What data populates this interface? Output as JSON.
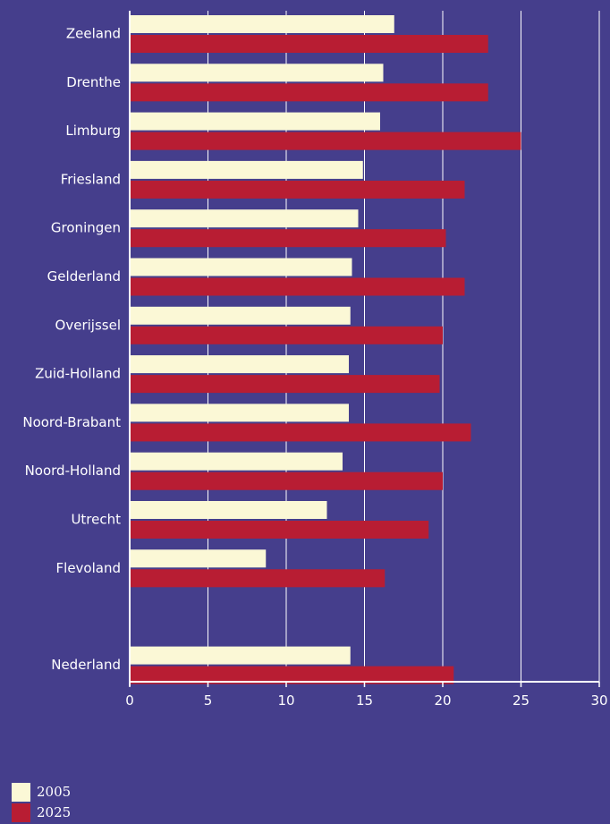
{
  "chart_data": {
    "type": "bar",
    "orientation": "horizontal",
    "categories": [
      "Zeeland",
      "Drenthe",
      "Limburg",
      "Friesland",
      "Groningen",
      "Gelderland",
      "Overijssel",
      "Zuid-Holland",
      "Noord-Brabant",
      "Noord-Holland",
      "Utrecht",
      "Flevoland",
      "Nederland"
    ],
    "series": [
      {
        "name": "2005",
        "color": "#fbf8d6",
        "values": [
          16.9,
          16.2,
          16.0,
          14.9,
          14.6,
          14.2,
          14.1,
          14.0,
          14.0,
          13.6,
          12.6,
          8.7,
          14.1
        ]
      },
      {
        "name": "2025",
        "color": "#b81d33",
        "values": [
          22.9,
          22.9,
          25.0,
          21.4,
          20.2,
          21.4,
          20.0,
          19.8,
          21.8,
          20.0,
          19.1,
          16.3,
          20.7
        ]
      }
    ],
    "xlim": [
      0,
      30
    ],
    "xticks": [
      "0",
      "5",
      "10",
      "15",
      "20",
      "25",
      "30"
    ],
    "grid": true,
    "legend_position": "bottom-left",
    "colors": {
      "background": "#453e8c",
      "grid": "#ffffff",
      "text": "#ffffff"
    }
  }
}
